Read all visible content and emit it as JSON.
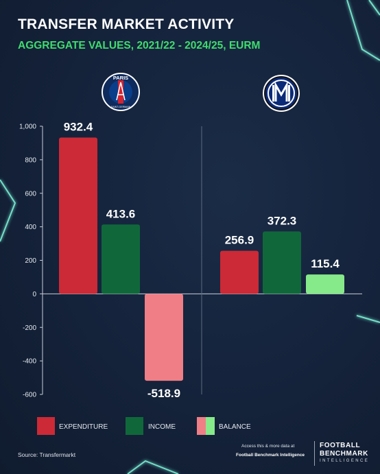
{
  "header": {
    "title": "TRANSFER MARKET ACTIVITY",
    "subtitle": "AGGREGATE VALUES, 2021/22 - 2024/25, EURM"
  },
  "colors": {
    "expenditure": "#cc2a36",
    "income": "#10683a",
    "balance_negative": "#ef7e86",
    "balance_positive": "#86e98a",
    "accent": "#3fdc6e",
    "background": "#14223a"
  },
  "chart_data": {
    "type": "bar",
    "title": "TRANSFER MARKET ACTIVITY",
    "subtitle": "AGGREGATE VALUES, 2021/22 - 2024/25, EURM",
    "xlabel": "",
    "ylabel": "",
    "ylim": [
      -600,
      1000
    ],
    "y_ticks": [
      1000,
      800,
      600,
      400,
      200,
      0,
      -200,
      -400,
      -600
    ],
    "y_tick_labels": [
      "1,000",
      "800",
      "600",
      "400",
      "200",
      "0",
      "-200",
      "-400",
      "-600"
    ],
    "grid": false,
    "legend_placement": "bottom-left",
    "groups": [
      {
        "logo": "psg-crest-icon",
        "bars": [
          {
            "series": "EXPENDITURE",
            "value": 932.4,
            "label": "932.4"
          },
          {
            "series": "INCOME",
            "value": 413.6,
            "label": "413.6"
          },
          {
            "series": "BALANCE",
            "value": -518.9,
            "label": "-518.9"
          }
        ]
      },
      {
        "logo": "inter-crest-icon",
        "bars": [
          {
            "series": "EXPENDITURE",
            "value": 256.9,
            "label": "256.9"
          },
          {
            "series": "INCOME",
            "value": 372.3,
            "label": "372.3"
          },
          {
            "series": "BALANCE",
            "value": 115.4,
            "label": "115.4"
          }
        ]
      }
    ],
    "legend": [
      {
        "label": "EXPENDITURE",
        "color": "#cc2a36"
      },
      {
        "label": "INCOME",
        "color": "#10683a"
      },
      {
        "label": "BALANCE",
        "colors": [
          "#ef7e86",
          "#86e98a"
        ]
      }
    ]
  },
  "crests": {
    "psg_top": "PARIS",
    "psg_bottom": "SAINT-GERMAIN"
  },
  "footer": {
    "source": "Source: Transfermarkt",
    "access_line1": "Access this & more data at",
    "access_line2": "Football Benchmark Intelligence",
    "brand_line1": "FOOTBALL",
    "brand_line2": "BENCHMARK",
    "brand_line3": "INTELLIGENCE"
  }
}
